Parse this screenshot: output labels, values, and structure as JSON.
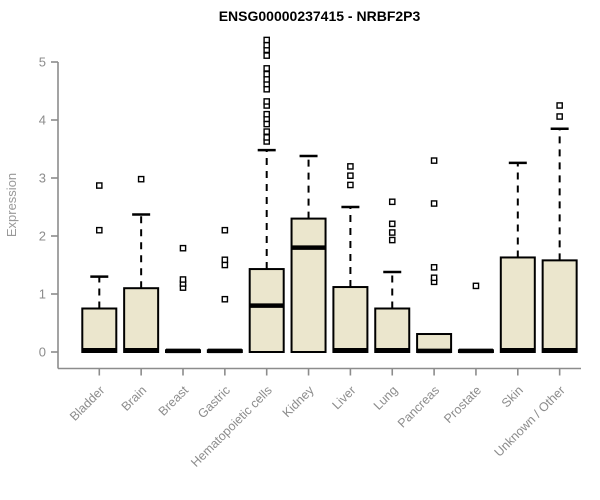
{
  "header": {
    "title": "ENSG00000237415 - NRBF2P3"
  },
  "chart_data": {
    "type": "boxplot",
    "title": "ENSG00000237415 - NRBF2P3",
    "xlabel": "",
    "ylabel": "Expression",
    "yticks": [
      0,
      1,
      2,
      3,
      4,
      5
    ],
    "ylim": [
      -0.3,
      5.5
    ],
    "grid": false,
    "legend": "none",
    "categories": [
      "Bladder",
      "Brain",
      "Breast",
      "Gastric",
      "Hematopoietic cells",
      "Kidney",
      "Liver",
      "Lung",
      "Pancreas",
      "Prostate",
      "Skin",
      "Unknown / Other"
    ],
    "boxes": [
      {
        "category": "Bladder",
        "q1": 0,
        "median": 0.03,
        "q3": 0.75,
        "whisker_low": 0,
        "whisker_high": 1.3,
        "outliers": [
          2.1,
          2.87
        ]
      },
      {
        "category": "Brain",
        "q1": 0,
        "median": 0.03,
        "q3": 1.1,
        "whisker_low": 0,
        "whisker_high": 2.37,
        "outliers": [
          2.98
        ]
      },
      {
        "category": "Breast",
        "q1": 0,
        "median": 0.02,
        "q3": 0.03,
        "whisker_low": 0,
        "whisker_high": 0.03,
        "outliers": [
          1.11,
          1.18,
          1.25,
          1.79
        ]
      },
      {
        "category": "Gastric",
        "q1": 0,
        "median": 0.02,
        "q3": 0.03,
        "whisker_low": 0,
        "whisker_high": 0.03,
        "outliers": [
          0.91,
          1.5,
          1.59,
          2.1
        ]
      },
      {
        "category": "Hematopoietic cells",
        "q1": 0,
        "median": 0.8,
        "q3": 1.43,
        "whisker_low": 0,
        "whisker_high": 3.48,
        "outliers": [
          3.63,
          3.7,
          3.8,
          3.93,
          4.02,
          4.1,
          4.25,
          4.32,
          4.53,
          4.62,
          4.7,
          4.79,
          4.89,
          5.11,
          5.21,
          5.29,
          5.38
        ]
      },
      {
        "category": "Kidney",
        "q1": 0,
        "median": 1.8,
        "q3": 2.3,
        "whisker_low": 0,
        "whisker_high": 3.38,
        "outliers": []
      },
      {
        "category": "Liver",
        "q1": 0,
        "median": 0.03,
        "q3": 1.12,
        "whisker_low": 0,
        "whisker_high": 2.5,
        "outliers": [
          2.88,
          3.04,
          3.2
        ]
      },
      {
        "category": "Lung",
        "q1": 0,
        "median": 0.03,
        "q3": 0.75,
        "whisker_low": 0,
        "whisker_high": 1.38,
        "outliers": [
          1.93,
          2.06,
          2.21,
          2.59
        ]
      },
      {
        "category": "Pancreas",
        "q1": 0,
        "median": 0.02,
        "q3": 0.31,
        "whisker_low": 0,
        "whisker_high": 0.31,
        "outliers": [
          1.21,
          1.28,
          1.46,
          2.56,
          3.3
        ]
      },
      {
        "category": "Prostate",
        "q1": 0,
        "median": 0.02,
        "q3": 0.03,
        "whisker_low": 0,
        "whisker_high": 0.03,
        "outliers": [
          1.14
        ]
      },
      {
        "category": "Skin",
        "q1": 0,
        "median": 0.03,
        "q3": 1.63,
        "whisker_low": 0,
        "whisker_high": 3.26,
        "outliers": []
      },
      {
        "category": "Unknown / Other",
        "q1": 0,
        "median": 0.03,
        "q3": 1.58,
        "whisker_low": 0,
        "whisker_high": 3.85,
        "outliers": [
          4.06,
          4.25
        ]
      }
    ],
    "colors": {
      "box_fill": "#EBE6CD",
      "box_border": "#000000",
      "median": "#000000",
      "whisker": "#000000",
      "outlier_border": "#000000",
      "outlier_fill": "#ffffff",
      "axis": "#8C8C8C",
      "tick_label": "#8C8C8C",
      "axis_label": "#999999",
      "title": "#000000",
      "background": "#ffffff"
    }
  }
}
